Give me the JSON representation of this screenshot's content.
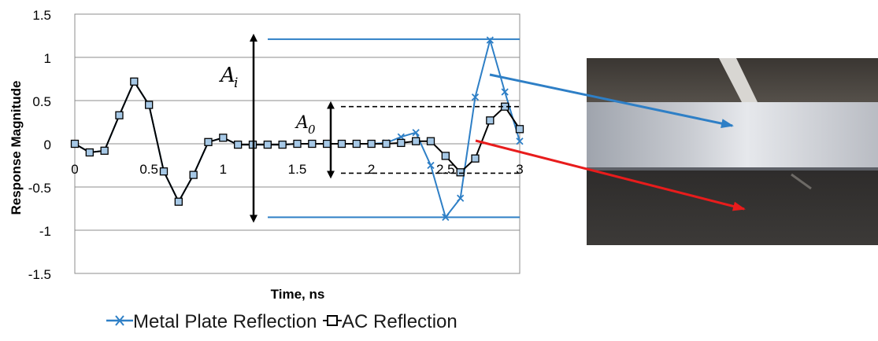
{
  "chart_data": {
    "type": "line",
    "xlabel": "Time, ns",
    "ylabel": "Response Magnitude",
    "xlim": [
      0,
      3
    ],
    "ylim": [
      -1.5,
      1.5
    ],
    "x_ticks": [
      "0",
      "0.5",
      "1",
      "1.5",
      "2",
      "2.5",
      "3"
    ],
    "y_ticks": [
      "1.5",
      "1",
      "0.5",
      "0",
      "-0.5",
      "-1",
      "-1.5"
    ],
    "grid": "horizontal",
    "legend_position": "bottom",
    "x": [
      0,
      0.1,
      0.2,
      0.3,
      0.4,
      0.5,
      0.6,
      0.7,
      0.8,
      0.9,
      1.0,
      1.1,
      1.2,
      1.3,
      1.4,
      1.5,
      1.6,
      1.7,
      1.8,
      1.9,
      2.0,
      2.1,
      2.2,
      2.3,
      2.4,
      2.5,
      2.6,
      2.7,
      2.8,
      2.9,
      3.0
    ],
    "series": [
      {
        "name": "Metal Plate Reflection",
        "color": "#2e7fc6",
        "marker": "x",
        "values": [
          0,
          -0.1,
          -0.08,
          0.33,
          0.72,
          0.45,
          -0.32,
          -0.67,
          -0.36,
          0.02,
          0.07,
          -0.01,
          -0.01,
          -0.01,
          -0.01,
          0.0,
          0.0,
          0.0,
          0.0,
          0.0,
          0.0,
          0.01,
          0.08,
          0.13,
          -0.25,
          -0.85,
          -0.63,
          0.54,
          1.2,
          0.6,
          0.03
        ]
      },
      {
        "name": "AC Reflection",
        "color": "#000000",
        "marker": "square",
        "values": [
          0,
          -0.1,
          -0.08,
          0.33,
          0.72,
          0.45,
          -0.32,
          -0.67,
          -0.36,
          0.02,
          0.07,
          -0.01,
          -0.01,
          -0.01,
          -0.01,
          0.0,
          0.0,
          0.0,
          0.0,
          0.0,
          0.0,
          0.0,
          0.01,
          0.03,
          0.03,
          -0.14,
          -0.33,
          -0.17,
          0.27,
          0.43,
          0.17
        ]
      }
    ],
    "annotations": {
      "ai_label": "A",
      "ai_sub": "i",
      "a0_label": "A",
      "a0_sub": "0",
      "ai_levels": [
        1.21,
        -0.85
      ],
      "a0_levels": [
        0.43,
        -0.34
      ]
    }
  },
  "colors": {
    "plate_arrow": "#2e7fc6",
    "ac_arrow": "#e81c1c"
  }
}
